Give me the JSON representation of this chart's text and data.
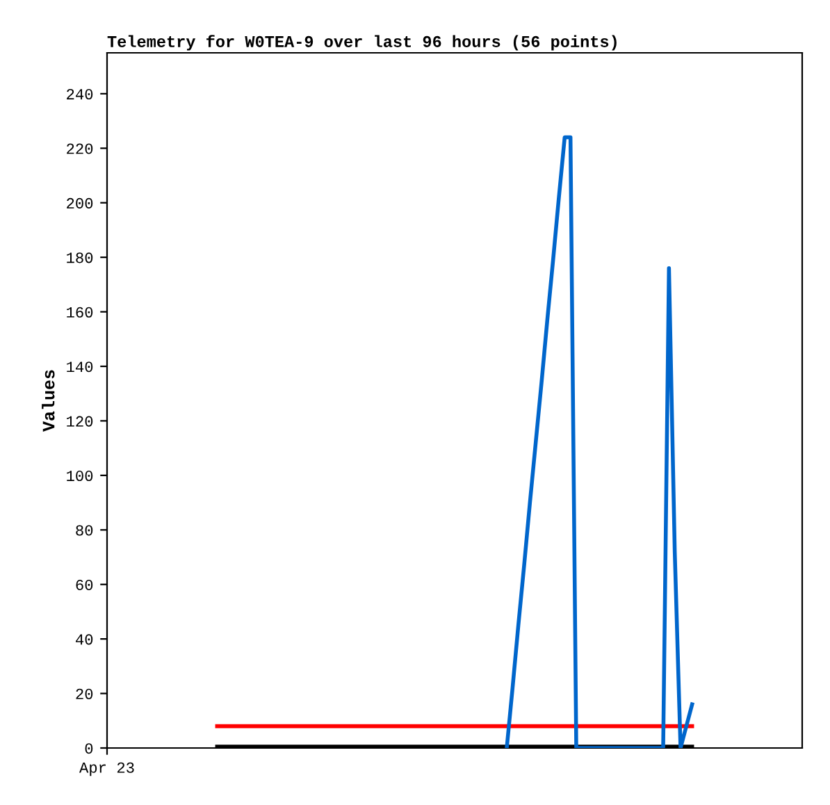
{
  "chart_data": {
    "type": "line",
    "title": "Telemetry for W0TEA-9 over last 96 hours (56 points)",
    "ylabel": "Values",
    "categories": [
      "Apr 23",
      null,
      null,
      null,
      null,
      null,
      null,
      null,
      null,
      null,
      null,
      null,
      null,
      null,
      null,
      null,
      null,
      null,
      null,
      null,
      null,
      null,
      null,
      null,
      null,
      null,
      null,
      null,
      null,
      null,
      null,
      null,
      null,
      null,
      null,
      null,
      null,
      null,
      null,
      null,
      null,
      null,
      null,
      null,
      null,
      null,
      null,
      null,
      null,
      null,
      null,
      null,
      null,
      null,
      null,
      null,
      null,
      null,
      null,
      null,
      null,
      null,
      null,
      null,
      null,
      null,
      null,
      null,
      null,
      null,
      null,
      null,
      null,
      null,
      null,
      null,
      null,
      null,
      null,
      null,
      null,
      null,
      null,
      null,
      null,
      null,
      null,
      null,
      null,
      null,
      null,
      null,
      null,
      null,
      null,
      null,
      null,
      null,
      null,
      null,
      null,
      null,
      null,
      null,
      null,
      null,
      null,
      null,
      null,
      null,
      null,
      null,
      null,
      null,
      null,
      null,
      null,
      null,
      null,
      null,
      null
    ],
    "ylim": [
      0,
      255
    ],
    "yticks": [
      0,
      20,
      40,
      60,
      80,
      100,
      120,
      140,
      160,
      180,
      200,
      220,
      240
    ],
    "grid": false,
    "marker": "none",
    "line_style": "solid",
    "series": [
      {
        "color": "#ff0000",
        "values": [
          null,
          null,
          null,
          null,
          null,
          null,
          null,
          null,
          null,
          null,
          null,
          null,
          null,
          null,
          null,
          null,
          null,
          null,
          null,
          8,
          8,
          8,
          8,
          8,
          8,
          8,
          8,
          8,
          8,
          8,
          8,
          8,
          8,
          8,
          8,
          8,
          8,
          8,
          8,
          8,
          8,
          8,
          8,
          8,
          8,
          8,
          8,
          8,
          8,
          8,
          8,
          8,
          8,
          8,
          8,
          8,
          8,
          8,
          8,
          8,
          8,
          8,
          8,
          8,
          8,
          8,
          8,
          8,
          8,
          8,
          8,
          8,
          8,
          8,
          8,
          8,
          8,
          8,
          8,
          8,
          8,
          8,
          8,
          8,
          8,
          8,
          8,
          8,
          8,
          8,
          8,
          8,
          8,
          8,
          8,
          8,
          8,
          8,
          8,
          8,
          8,
          8,
          null,
          null,
          null,
          null,
          null,
          null,
          null,
          null,
          null,
          null,
          null,
          null,
          null,
          null,
          null,
          null,
          null,
          null,
          null
        ]
      },
      {
        "color": "#000000",
        "values": [
          null,
          null,
          null,
          null,
          null,
          null,
          null,
          null,
          null,
          null,
          null,
          null,
          null,
          null,
          null,
          null,
          null,
          null,
          null,
          0.5,
          0.5,
          0.5,
          0.5,
          0.5,
          0.5,
          0.5,
          0.5,
          0.5,
          0.5,
          0.5,
          0.5,
          0.5,
          0.5,
          0.5,
          0.5,
          0.5,
          0.5,
          0.5,
          0.5,
          0.5,
          0.5,
          0.5,
          0.5,
          0.5,
          0.5,
          0.5,
          0.5,
          0.5,
          0.5,
          0.5,
          0.5,
          0.5,
          0.5,
          0.5,
          0.5,
          0.5,
          0.5,
          0.5,
          0.5,
          0.5,
          0.5,
          0.5,
          0.5,
          0.5,
          0.5,
          0.5,
          0.5,
          0.5,
          0.5,
          0.5,
          0.5,
          0.5,
          0.5,
          0.5,
          0.5,
          0.5,
          0.5,
          0.5,
          0.5,
          0.5,
          0.5,
          0.5,
          0.5,
          0.5,
          0.5,
          0.5,
          0.5,
          0.5,
          0.5,
          0.5,
          0.5,
          0.5,
          0.5,
          0.5,
          0.5,
          0.5,
          0.5,
          0.5,
          0.5,
          0.5,
          0.5,
          0.5,
          null,
          null,
          null,
          null,
          null,
          null,
          null,
          null,
          null,
          null,
          null,
          null,
          null,
          null,
          null,
          null,
          null,
          null,
          null
        ]
      },
      {
        "color": "#0066cc",
        "values": [
          null,
          null,
          null,
          null,
          null,
          null,
          null,
          null,
          null,
          null,
          null,
          null,
          null,
          null,
          null,
          null,
          null,
          null,
          null,
          null,
          null,
          null,
          null,
          null,
          null,
          null,
          null,
          null,
          null,
          null,
          null,
          null,
          null,
          null,
          null,
          null,
          null,
          null,
          null,
          null,
          null,
          null,
          null,
          null,
          null,
          null,
          null,
          null,
          null,
          null,
          null,
          null,
          null,
          null,
          null,
          null,
          null,
          null,
          null,
          null,
          null,
          null,
          null,
          null,
          null,
          null,
          null,
          null,
          null,
          0,
          22,
          45,
          67,
          90,
          112,
          134,
          157,
          179,
          202,
          224,
          224,
          0,
          0,
          0,
          0,
          0,
          0,
          0,
          0,
          0,
          0,
          0,
          0,
          0,
          0,
          0,
          0,
          176,
          72,
          0,
          8,
          16,
          null,
          null,
          null,
          null,
          null,
          null,
          null,
          null,
          null,
          null,
          null,
          null,
          null,
          null,
          null,
          null,
          null,
          null,
          null
        ]
      }
    ]
  }
}
